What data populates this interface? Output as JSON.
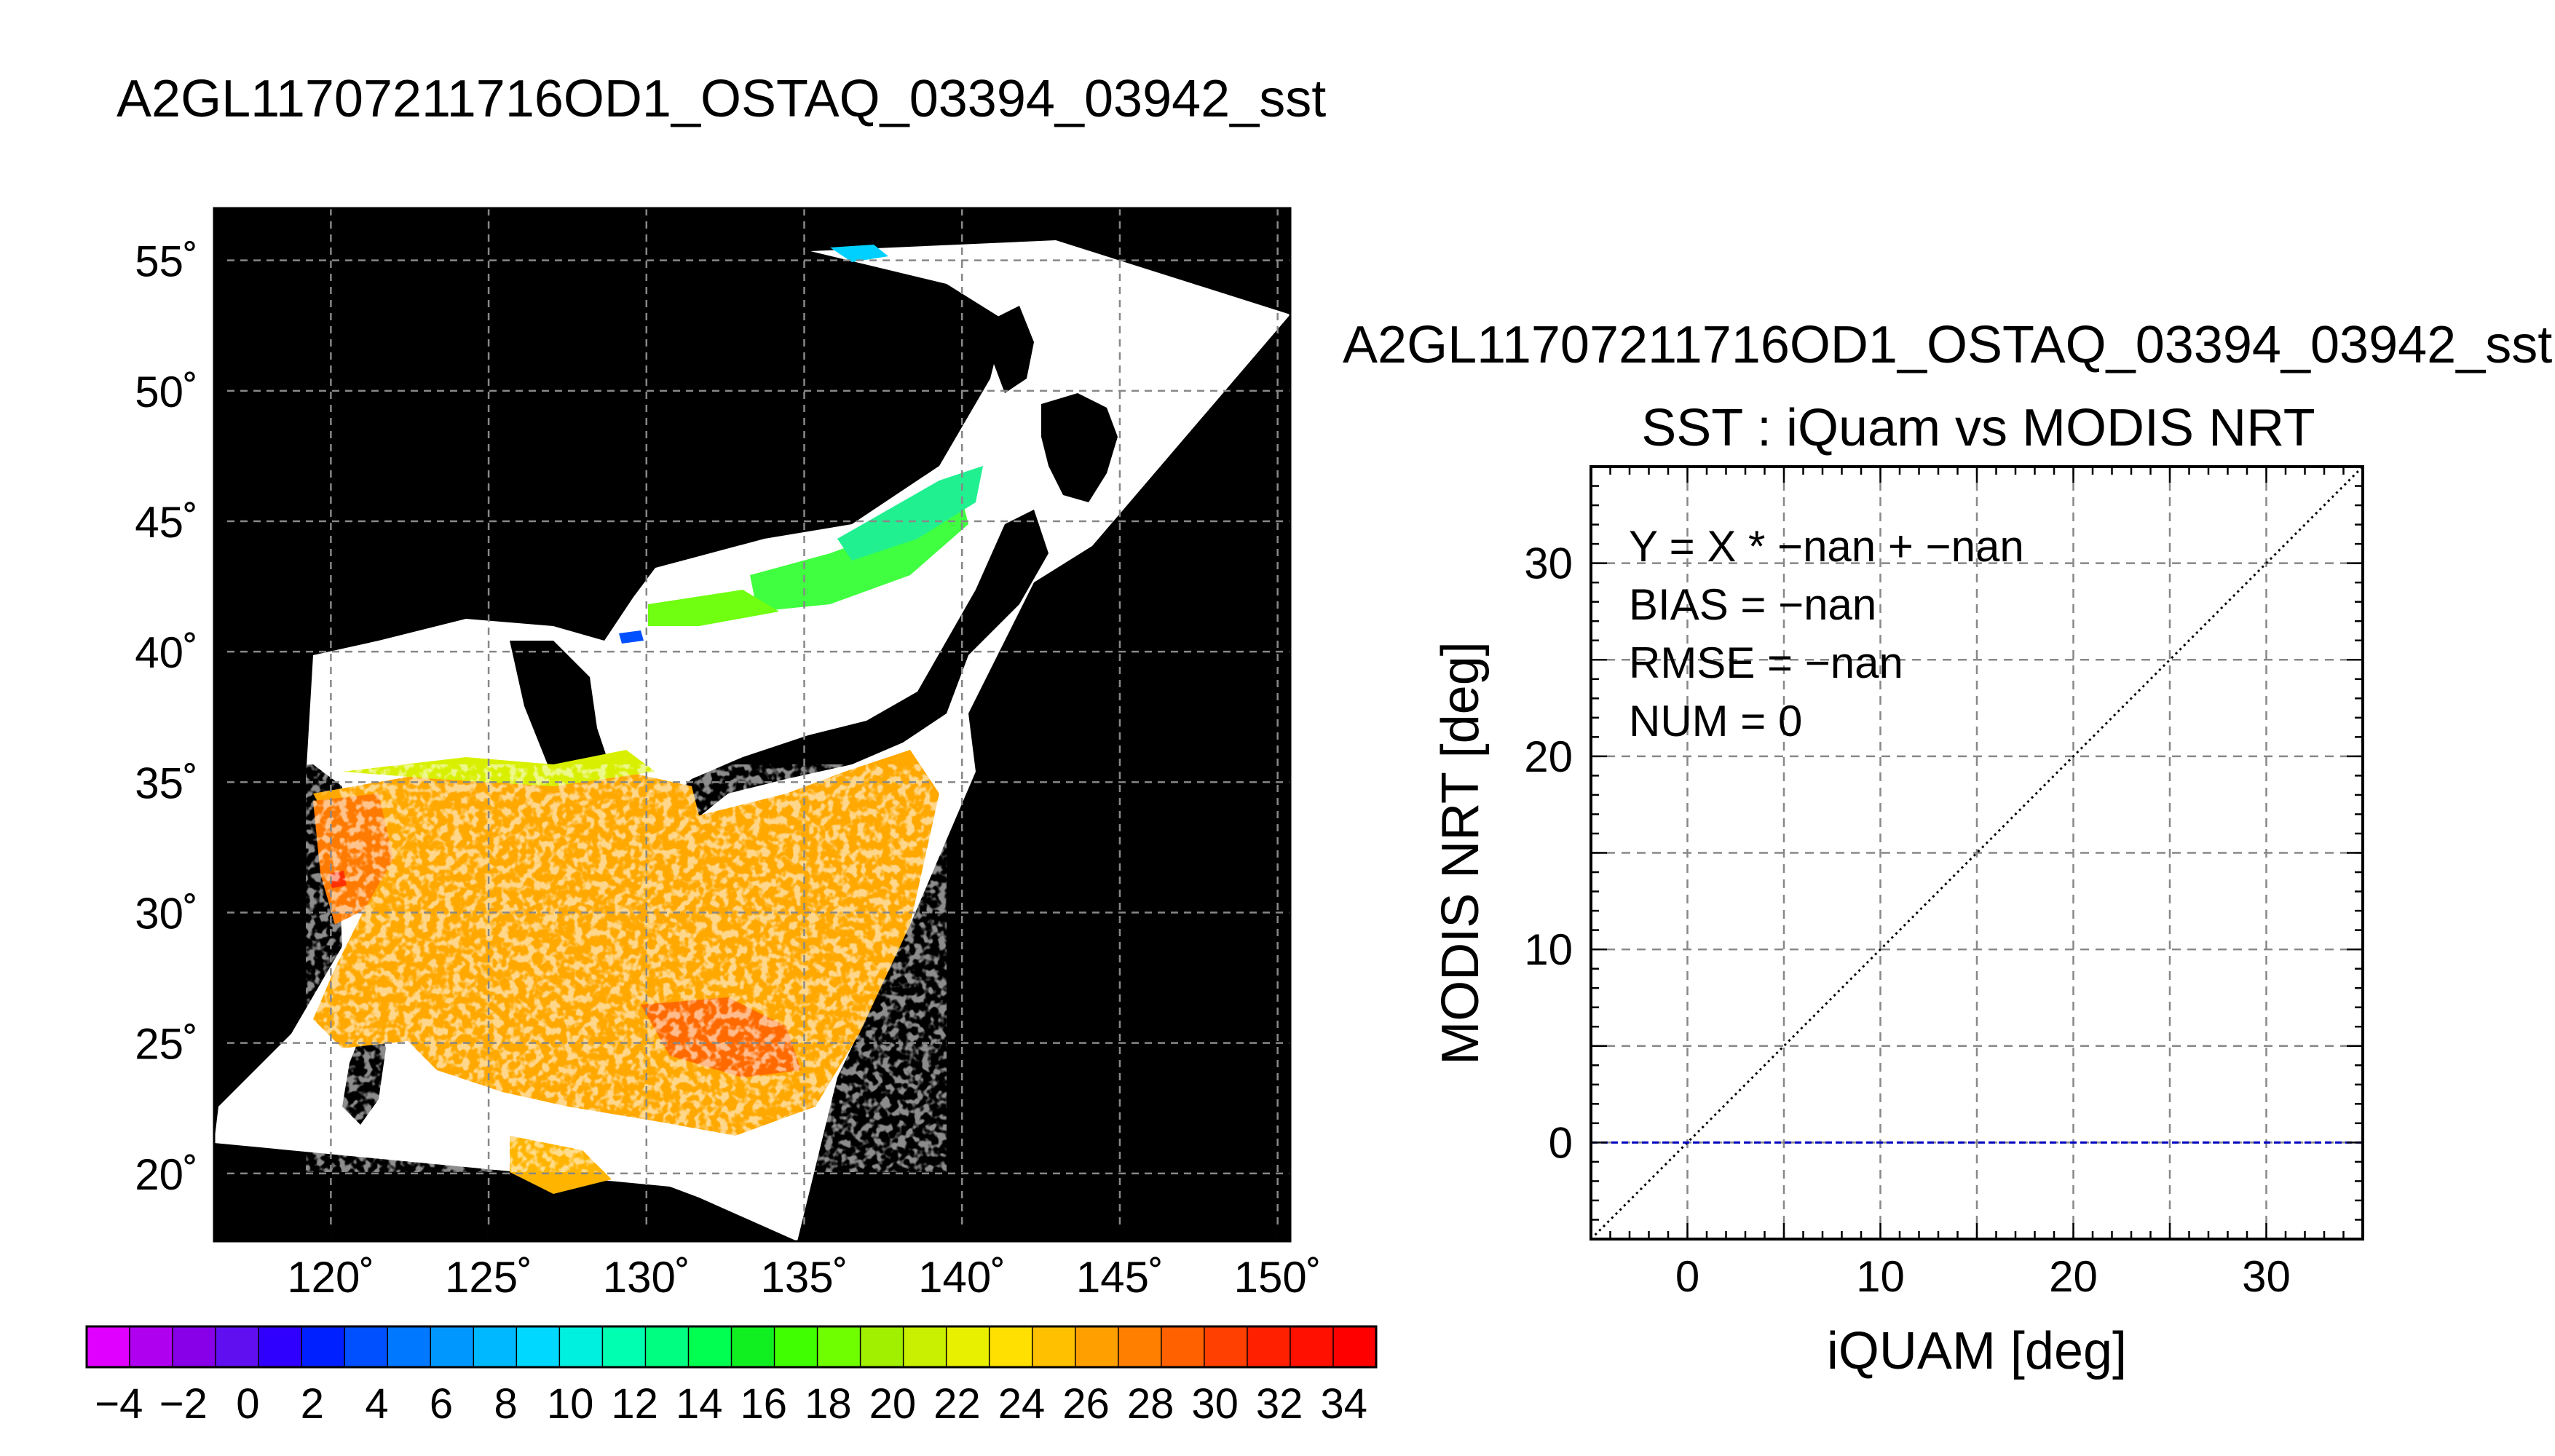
{
  "page": {
    "left_title": "A2GL11707211716OD1_OSTAQ_03394_03942_sst",
    "right_title": "A2GL11707211716OD1_OSTAQ_03394_03942_sst"
  },
  "map": {
    "lat_ticks": [
      {
        "value": 55,
        "label": "55˚"
      },
      {
        "value": 50,
        "label": "50˚"
      },
      {
        "value": 45,
        "label": "45˚"
      },
      {
        "value": 40,
        "label": "40˚"
      },
      {
        "value": 35,
        "label": "35˚"
      },
      {
        "value": 30,
        "label": "30˚"
      },
      {
        "value": 25,
        "label": "25˚"
      },
      {
        "value": 20,
        "label": "20˚"
      }
    ],
    "lon_ticks": [
      {
        "value": 120,
        "label": "120˚"
      },
      {
        "value": 125,
        "label": "125˚"
      },
      {
        "value": 130,
        "label": "130˚"
      },
      {
        "value": 135,
        "label": "135˚"
      },
      {
        "value": 140,
        "label": "140˚"
      },
      {
        "value": 145,
        "label": "145˚"
      },
      {
        "value": 150,
        "label": "150˚"
      }
    ],
    "lon_range": [
      116.3,
      150.4
    ],
    "lat_range": [
      17.4,
      57.0
    ],
    "background_color": "#000000",
    "no_data_color": "#ffffff",
    "grid": true
  },
  "colorbar": {
    "labels": [
      "−4",
      "−2",
      "0",
      "2",
      "4",
      "6",
      "8",
      "10",
      "12",
      "14",
      "16",
      "18",
      "20",
      "22",
      "24",
      "26",
      "28",
      "30",
      "32",
      "34"
    ],
    "range": [
      -5,
      35
    ],
    "colors": [
      "#e000ff",
      "#b000f0",
      "#8800e8",
      "#6010f0",
      "#3000ff",
      "#0020ff",
      "#0050ff",
      "#0078ff",
      "#0098ff",
      "#00b8ff",
      "#00d8ff",
      "#00f0e0",
      "#00ffb0",
      "#00ff80",
      "#00ff50",
      "#10f020",
      "#40ff00",
      "#70ff00",
      "#a0f000",
      "#c8f000",
      "#e8f000",
      "#ffe000",
      "#ffc000",
      "#ffa000",
      "#ff8000",
      "#ff6000",
      "#ff4000",
      "#ff2000",
      "#ff1000",
      "#ff0000"
    ]
  },
  "chart_data": {
    "type": "scatter",
    "title": "SST : iQuam vs MODIS NRT",
    "xlabel": "iQUAM [deg]",
    "ylabel": "MODIS NRT [deg]",
    "xlim": [
      -5,
      35
    ],
    "ylim": [
      -5,
      35
    ],
    "x_ticks": [
      0,
      10,
      20,
      30
    ],
    "y_ticks": [
      0,
      10,
      20,
      30
    ],
    "grid": true,
    "points": [],
    "reference_lines": [
      {
        "name": "",
        "style": "dotted",
        "color": "#000000",
        "x": [
          -5,
          35
        ],
        "y": [
          -5,
          35
        ]
      },
      {
        "name": "",
        "style": "dashed",
        "color": "#0000c0",
        "x": [
          -5,
          35
        ],
        "y": [
          0,
          0
        ]
      }
    ],
    "annotations": [
      "Y = X * −nan + −nan",
      "BIAS = −nan",
      "RMSE = −nan",
      "NUM = 0"
    ]
  }
}
